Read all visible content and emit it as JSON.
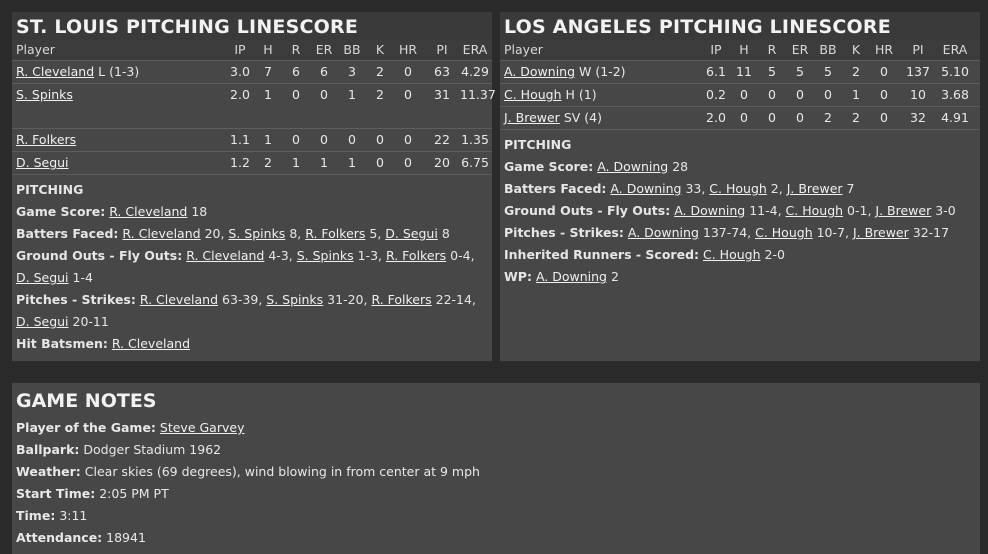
{
  "stl": {
    "title": "ST. LOUIS PITCHING LINESCORE",
    "headers": [
      "Player",
      "IP",
      "H",
      "R",
      "ER",
      "BB",
      "K",
      "HR",
      "PI",
      "ERA"
    ],
    "rows": [
      {
        "name": "R. Cleveland",
        "note": "L (1-3)",
        "ip": "3.0",
        "h": "7",
        "r": "6",
        "er": "6",
        "bb": "3",
        "k": "2",
        "hr": "0",
        "pi": "63",
        "era": "4.29"
      },
      {
        "name": "S. Spinks",
        "note": "",
        "ip": "2.0",
        "h": "1",
        "r": "0",
        "er": "0",
        "bb": "1",
        "k": "2",
        "hr": "0",
        "pi": "31",
        "era": "11.37"
      },
      {
        "name": "R. Folkers",
        "note": "",
        "ip": "1.1",
        "h": "1",
        "r": "0",
        "er": "0",
        "bb": "0",
        "k": "0",
        "hr": "0",
        "pi": "22",
        "era": "1.35"
      },
      {
        "name": "D. Segui",
        "note": "",
        "ip": "1.2",
        "h": "2",
        "r": "1",
        "er": "1",
        "bb": "1",
        "k": "0",
        "hr": "0",
        "pi": "20",
        "era": "6.75"
      }
    ],
    "pitching_head": "PITCHING",
    "game_score_label": "Game Score:",
    "game_score": {
      "name": "R. Cleveland",
      "val": "18"
    },
    "batters_faced_label": "Batters Faced:",
    "batters_faced": [
      {
        "name": "R. Cleveland",
        "val": "20"
      },
      {
        "name": "S. Spinks",
        "val": "8"
      },
      {
        "name": "R. Folkers",
        "val": "5"
      },
      {
        "name": "D. Segui",
        "val": "8"
      }
    ],
    "go_fo_label": "Ground Outs - Fly Outs:",
    "go_fo": [
      {
        "name": "R. Cleveland",
        "val": "4-3"
      },
      {
        "name": "S. Spinks",
        "val": "1-3"
      },
      {
        "name": "R. Folkers",
        "val": "0-4"
      },
      {
        "name": "D. Segui",
        "val": "1-4"
      }
    ],
    "pitches_label": "Pitches - Strikes:",
    "pitches": [
      {
        "name": "R. Cleveland",
        "val": "63-39"
      },
      {
        "name": "S. Spinks",
        "val": "31-20"
      },
      {
        "name": "R. Folkers",
        "val": "22-14"
      },
      {
        "name": "D. Segui",
        "val": "20-11"
      }
    ],
    "hbp_label": "Hit Batsmen:",
    "hbp_name": "R. Cleveland"
  },
  "la": {
    "title": "LOS ANGELES PITCHING LINESCORE",
    "headers": [
      "Player",
      "IP",
      "H",
      "R",
      "ER",
      "BB",
      "K",
      "HR",
      "PI",
      "ERA"
    ],
    "rows": [
      {
        "name": "A. Downing",
        "note": "W (1-2)",
        "ip": "6.1",
        "h": "11",
        "r": "5",
        "er": "5",
        "bb": "5",
        "k": "2",
        "hr": "0",
        "pi": "137",
        "era": "5.10"
      },
      {
        "name": "C. Hough",
        "note": "H (1)",
        "ip": "0.2",
        "h": "0",
        "r": "0",
        "er": "0",
        "bb": "0",
        "k": "1",
        "hr": "0",
        "pi": "10",
        "era": "3.68"
      },
      {
        "name": "J. Brewer",
        "note": "SV (4)",
        "ip": "2.0",
        "h": "0",
        "r": "0",
        "er": "0",
        "bb": "2",
        "k": "2",
        "hr": "0",
        "pi": "32",
        "era": "4.91"
      }
    ],
    "pitching_head": "PITCHING",
    "game_score_label": "Game Score:",
    "game_score": {
      "name": "A. Downing",
      "val": "28"
    },
    "batters_faced_label": "Batters Faced:",
    "batters_faced": [
      {
        "name": "A. Downing",
        "val": "33"
      },
      {
        "name": "C. Hough",
        "val": "2"
      },
      {
        "name": "J. Brewer",
        "val": "7"
      }
    ],
    "go_fo_label": "Ground Outs - Fly Outs:",
    "go_fo": [
      {
        "name": "A. Downing",
        "val": "11-4"
      },
      {
        "name": "C. Hough",
        "val": "0-1"
      },
      {
        "name": "J. Brewer",
        "val": "3-0"
      }
    ],
    "pitches_label": "Pitches - Strikes:",
    "pitches": [
      {
        "name": "A. Downing",
        "val": "137-74"
      },
      {
        "name": "C. Hough",
        "val": "10-7"
      },
      {
        "name": "J. Brewer",
        "val": "32-17"
      }
    ],
    "ir_label": "Inherited Runners - Scored:",
    "ir": {
      "name": "C. Hough",
      "val": "2-0"
    },
    "wp_label": "WP:",
    "wp": {
      "name": "A. Downing",
      "val": "2"
    }
  },
  "notes": {
    "title": "GAME NOTES",
    "potg_label": "Player of the Game:",
    "potg": "Steve Garvey",
    "ballpark_label": "Ballpark:",
    "ballpark": "Dodger Stadium 1962",
    "weather_label": "Weather:",
    "weather": "Clear skies (69 degrees), wind blowing in from center at 9 mph",
    "start_label": "Start Time:",
    "start": "2:05 PM PT",
    "time_label": "Time:",
    "time": "3:11",
    "att_label": "Attendance:",
    "att": "18941"
  }
}
